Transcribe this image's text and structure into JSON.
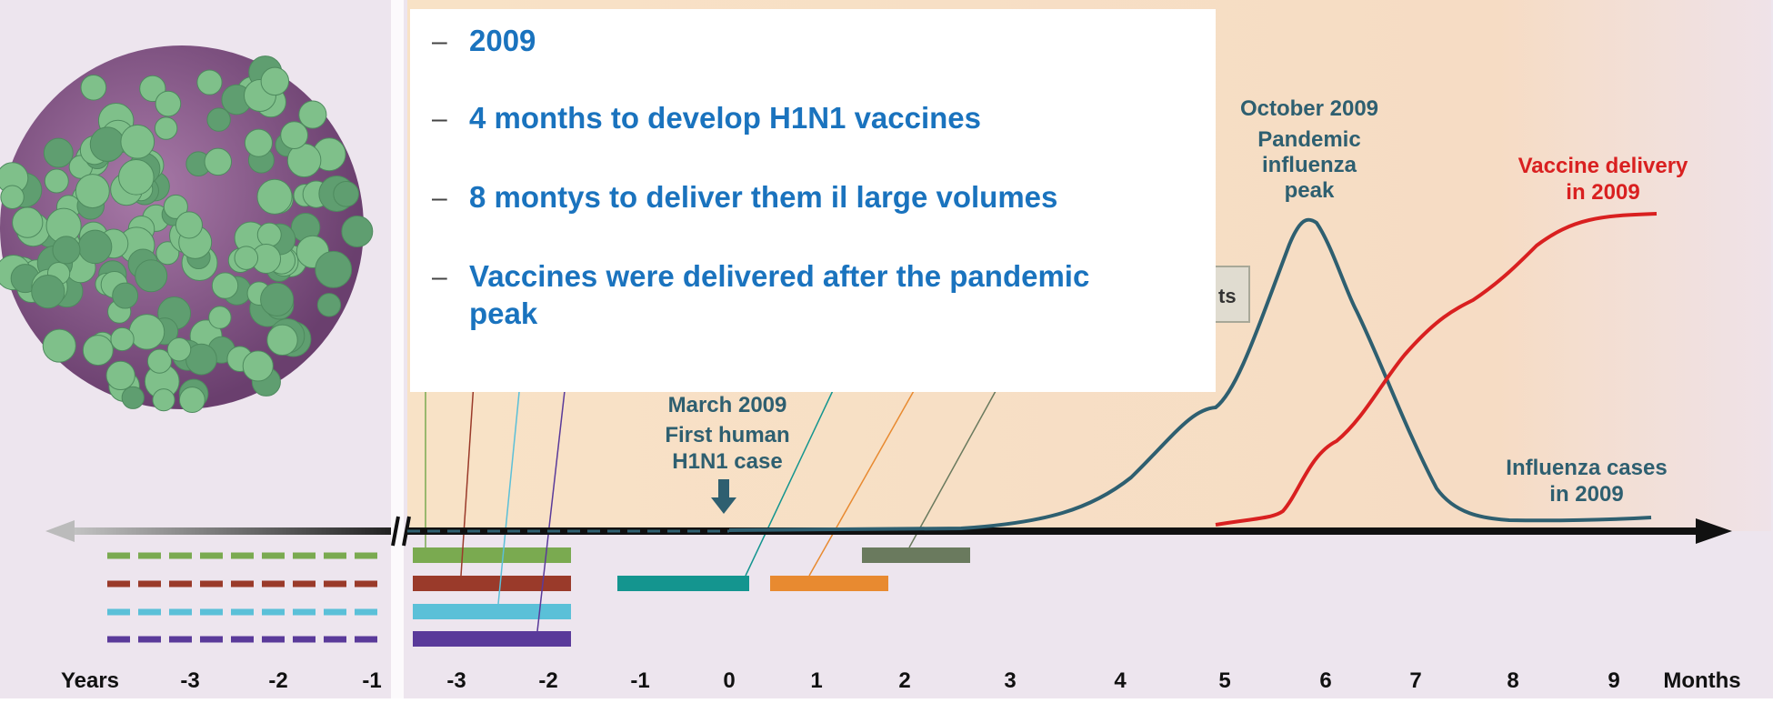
{
  "bullets": [
    "2009",
    "4 months to develop H1N1 vaccines",
    "8 montys to deliver them il large volumes",
    [
      "Vaccines were delivered after the pandemic",
      "peak"
    ]
  ],
  "annotations": {
    "peak_title": "October 2009",
    "peak_text": [
      "Pandemic",
      "influenza",
      "peak"
    ],
    "first_case_title": "March 2009",
    "first_case_text": [
      "First human",
      "H1N1 case"
    ],
    "vaccine_delivery": [
      "Vaccine delivery",
      "in 2009"
    ],
    "influenza_cases": [
      "Influenza cases",
      "in 2009"
    ],
    "partial_box": "ts"
  },
  "axis": {
    "years_label": "Years",
    "years_ticks": [
      "-3",
      "-2",
      "-1"
    ],
    "months_ticks": [
      "-3",
      "-2",
      "-1",
      "0",
      "1",
      "2",
      "3",
      "4",
      "5",
      "6",
      "7",
      "8",
      "9"
    ],
    "months_label": "Months"
  }
}
